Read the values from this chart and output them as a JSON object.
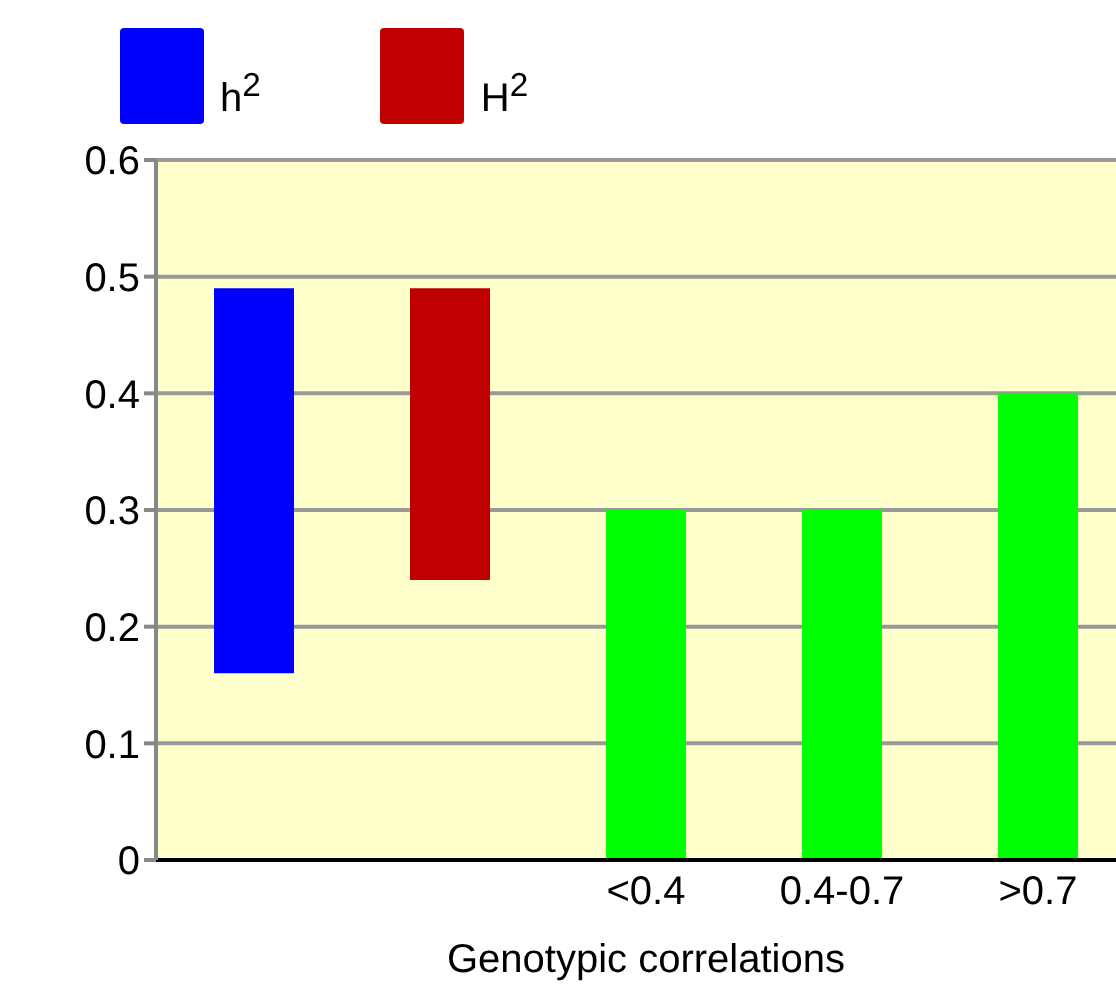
{
  "chart_data": {
    "type": "bar",
    "xlabel": "Genotypic correlations",
    "categories": [
      null,
      null,
      "<0.4",
      "0.4-0.7",
      ">0.7"
    ],
    "series": [
      {
        "name": "h$^{2}$",
        "color": "#0000ff",
        "values": [
          0.33,
          null,
          null,
          null,
          null
        ],
        "base": [
          0.16,
          null,
          null,
          null,
          null
        ]
      },
      {
        "name": "H$^{2}$",
        "color": "#c00000",
        "values": [
          null,
          0.25,
          null,
          null,
          null
        ],
        "base": [
          null,
          0.24,
          null,
          null,
          null
        ]
      },
      {
        "color": "#00ff00",
        "values": [
          null,
          null,
          0.3,
          0.3,
          0.4
        ]
      }
    ],
    "ylim": [
      0,
      0.6
    ],
    "yticks": [
      0,
      0.1,
      0.2,
      0.3,
      0.4,
      0.5,
      0.6
    ],
    "grid": "y",
    "legend": "top left"
  }
}
